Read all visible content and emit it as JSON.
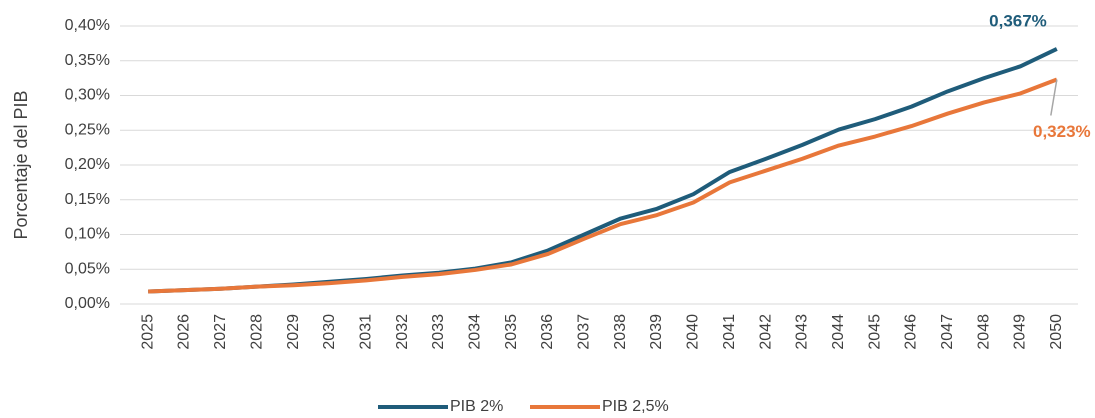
{
  "chart_data": {
    "type": "line",
    "y_label": "Porcentaje del PIB",
    "categories": [
      "2025",
      "2026",
      "2027",
      "2028",
      "2029",
      "2030",
      "2031",
      "2032",
      "2033",
      "2034",
      "2035",
      "2036",
      "2037",
      "2038",
      "2039",
      "2040",
      "2041",
      "2042",
      "2043",
      "2044",
      "2045",
      "2046",
      "2047",
      "2048",
      "2049",
      "2050"
    ],
    "series": [
      {
        "name": "PIB 2%",
        "color": "#1f5c7a",
        "values": [
          0.018,
          0.02,
          0.022,
          0.025,
          0.028,
          0.032,
          0.036,
          0.041,
          0.045,
          0.051,
          0.06,
          0.077,
          0.1,
          0.123,
          0.137,
          0.158,
          0.19,
          0.209,
          0.229,
          0.251,
          0.266,
          0.284,
          0.306,
          0.325,
          0.342,
          0.367
        ],
        "value_labels": [
          null,
          null,
          null,
          null,
          null,
          null,
          null,
          null,
          null,
          null,
          null,
          null,
          null,
          null,
          null,
          null,
          null,
          null,
          null,
          null,
          null,
          null,
          null,
          null,
          null,
          "0,367%"
        ]
      },
      {
        "name": "PIB 2,5%",
        "color": "#e8773a",
        "values": [
          0.018,
          0.02,
          0.022,
          0.025,
          0.027,
          0.03,
          0.034,
          0.039,
          0.043,
          0.049,
          0.057,
          0.072,
          0.094,
          0.115,
          0.128,
          0.146,
          0.175,
          0.192,
          0.209,
          0.228,
          0.241,
          0.256,
          0.274,
          0.29,
          0.303,
          0.323
        ],
        "value_labels": [
          null,
          null,
          null,
          null,
          null,
          null,
          null,
          null,
          null,
          null,
          null,
          null,
          null,
          null,
          null,
          null,
          null,
          null,
          null,
          null,
          null,
          null,
          null,
          null,
          null,
          "0,323%"
        ]
      }
    ],
    "ylim": [
      0,
      0.4
    ],
    "yticks": [
      {
        "value": 0,
        "label": "0,00%"
      },
      {
        "value": 0.05,
        "label": "0,05%"
      },
      {
        "value": 0.1,
        "label": "0,10%"
      },
      {
        "value": 0.15,
        "label": "0,15%"
      },
      {
        "value": 0.2,
        "label": "0,20%"
      },
      {
        "value": 0.25,
        "label": "0,25%"
      },
      {
        "value": 0.3,
        "label": "0,30%"
      },
      {
        "value": 0.35,
        "label": "0,35%"
      },
      {
        "value": 0.4,
        "label": "0,40%"
      }
    ],
    "grid": true,
    "legend": "bottom"
  }
}
